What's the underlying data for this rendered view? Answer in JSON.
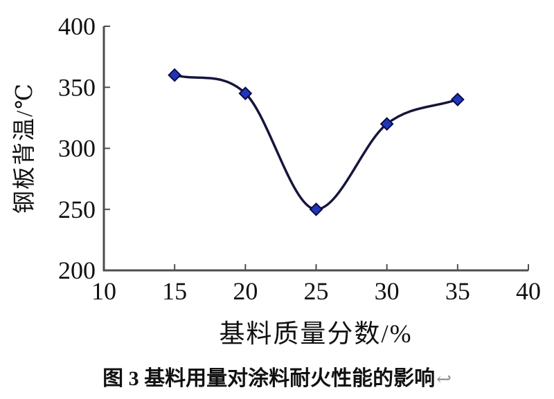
{
  "figure": {
    "caption": "图 3 基料用量对涂料耐火性能的影响",
    "caption_return_mark": "↩"
  },
  "chart_data": {
    "type": "line",
    "title": "",
    "xlabel": "基料质量分数/%",
    "ylabel": "钢板背温/℃",
    "x": [
      15,
      20,
      25,
      30,
      35
    ],
    "y": [
      360,
      345,
      250,
      320,
      340
    ],
    "series": [
      {
        "name": "钢板背温",
        "x": [
          15,
          20,
          25,
          30,
          35
        ],
        "values": [
          360,
          345,
          250,
          320,
          340
        ]
      }
    ],
    "xlim": [
      10,
      40
    ],
    "ylim": [
      200,
      400
    ],
    "xticks": [
      10,
      15,
      20,
      25,
      30,
      35,
      40
    ],
    "yticks": [
      200,
      250,
      300,
      350,
      400
    ],
    "grid": false,
    "legend": "none",
    "marker": "diamond",
    "colors": {
      "axis": "#4d4d4d",
      "line": "#15153d",
      "marker_fill": "#2036b8",
      "marker_stroke": "#0a0a4a",
      "text": "#111111"
    }
  }
}
